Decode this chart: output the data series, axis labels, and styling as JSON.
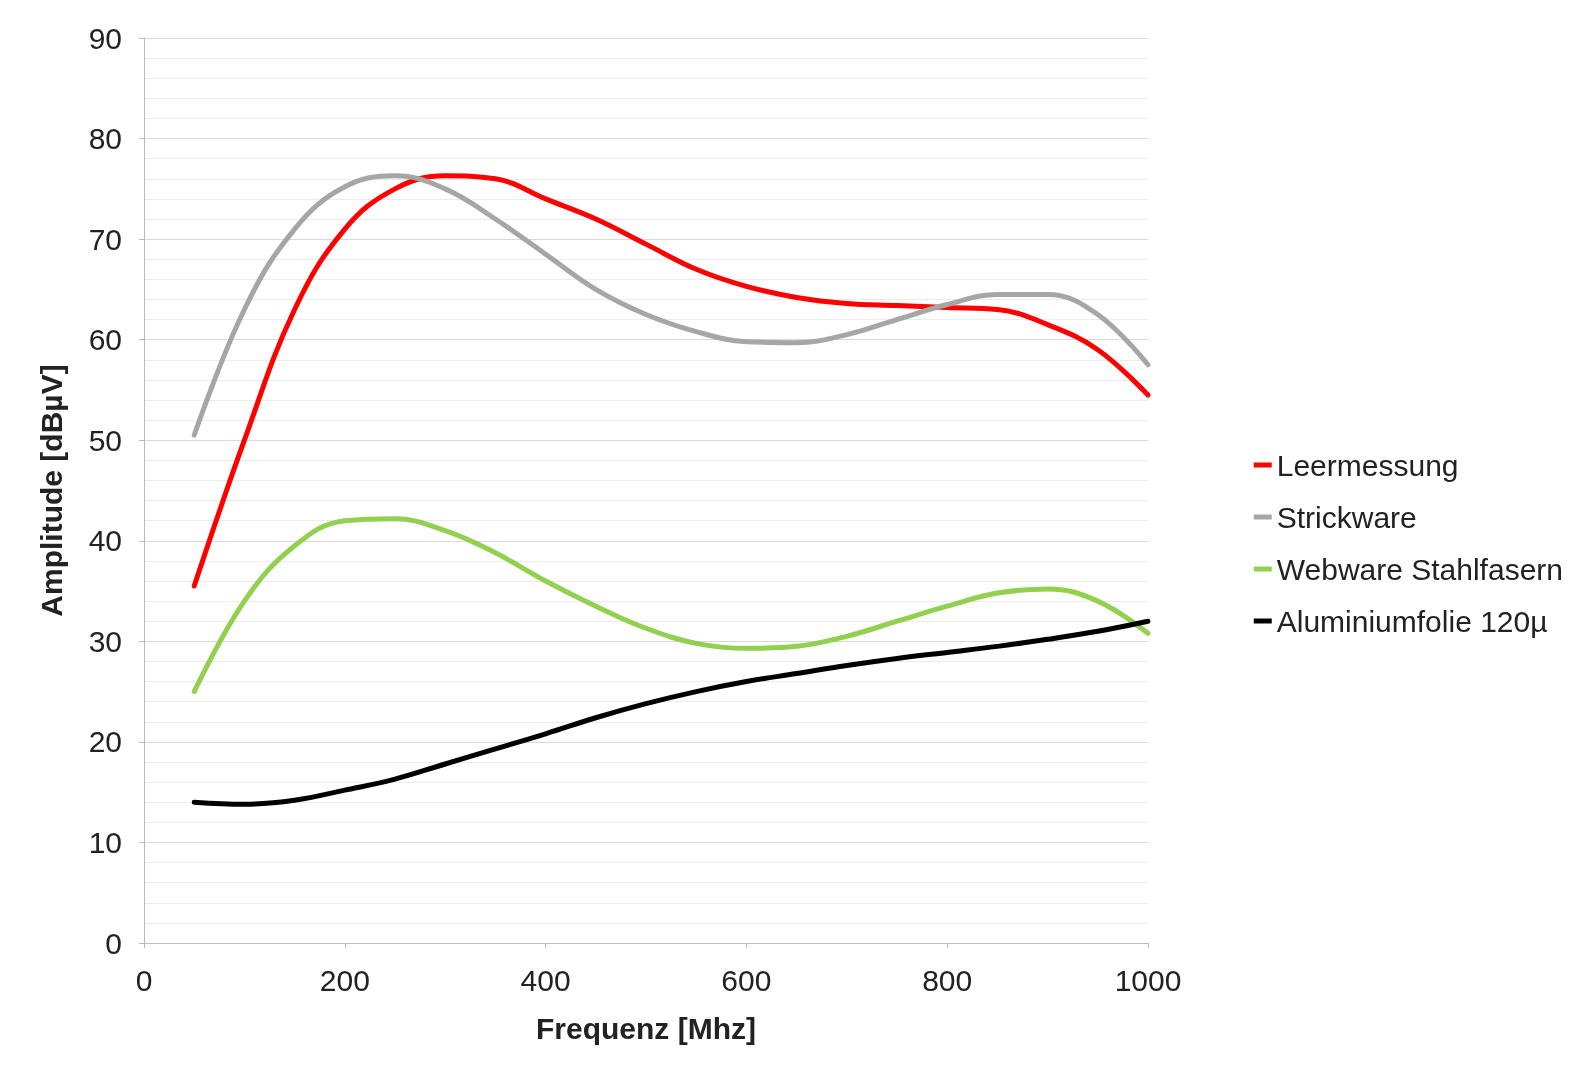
{
  "chart_data": {
    "type": "line",
    "xlabel": "Frequenz [Mhz]",
    "ylabel": "Amplitude [dBµV]",
    "x": [
      50,
      100,
      150,
      200,
      250,
      300,
      350,
      400,
      450,
      500,
      550,
      600,
      650,
      700,
      750,
      800,
      850,
      900,
      950,
      1000
    ],
    "series": [
      {
        "name": "Leermessung",
        "color": "#ff0000",
        "values": [
          35.5,
          50,
          63,
          71,
          75,
          76.3,
          76,
          74,
          72,
          69.5,
          67,
          65.3,
          64.2,
          63.6,
          63.4,
          63.2,
          63,
          61.5,
          59,
          54.5
        ]
      },
      {
        "name": "Strickware",
        "color": "#a6a6a6",
        "values": [
          50.5,
          63,
          71,
          75.2,
          76.3,
          75,
          72,
          68.5,
          65,
          62.5,
          60.8,
          59.8,
          59.7,
          60.5,
          62,
          63.5,
          64.5,
          64.5,
          62.5,
          57.5
        ]
      },
      {
        "name": "Webware Stahlfasern",
        "color": "#92d050",
        "values": [
          25,
          34,
          39.5,
          42,
          42.2,
          41,
          38.8,
          36,
          33.5,
          31.3,
          29.8,
          29.3,
          29.5,
          30.5,
          32,
          33.5,
          34.8,
          35.2,
          34,
          30.8
        ]
      },
      {
        "name": "Aluminiumfolie 120µ",
        "color": "#000000",
        "values": [
          14,
          13.8,
          14.2,
          15.2,
          16.3,
          17.8,
          19.3,
          20.8,
          22.4,
          23.8,
          25,
          26,
          26.8,
          27.6,
          28.3,
          28.9,
          29.5,
          30.2,
          31,
          32
        ]
      }
    ],
    "xlim": [
      0,
      1000
    ],
    "xticks": [
      0,
      200,
      400,
      600,
      800,
      1000
    ],
    "ylim": [
      0,
      90
    ],
    "yticks": [
      0,
      10,
      20,
      30,
      40,
      50,
      60,
      70,
      80,
      90
    ],
    "grid": "y",
    "legend": "right",
    "marker": "none",
    "line_style": "solid"
  }
}
